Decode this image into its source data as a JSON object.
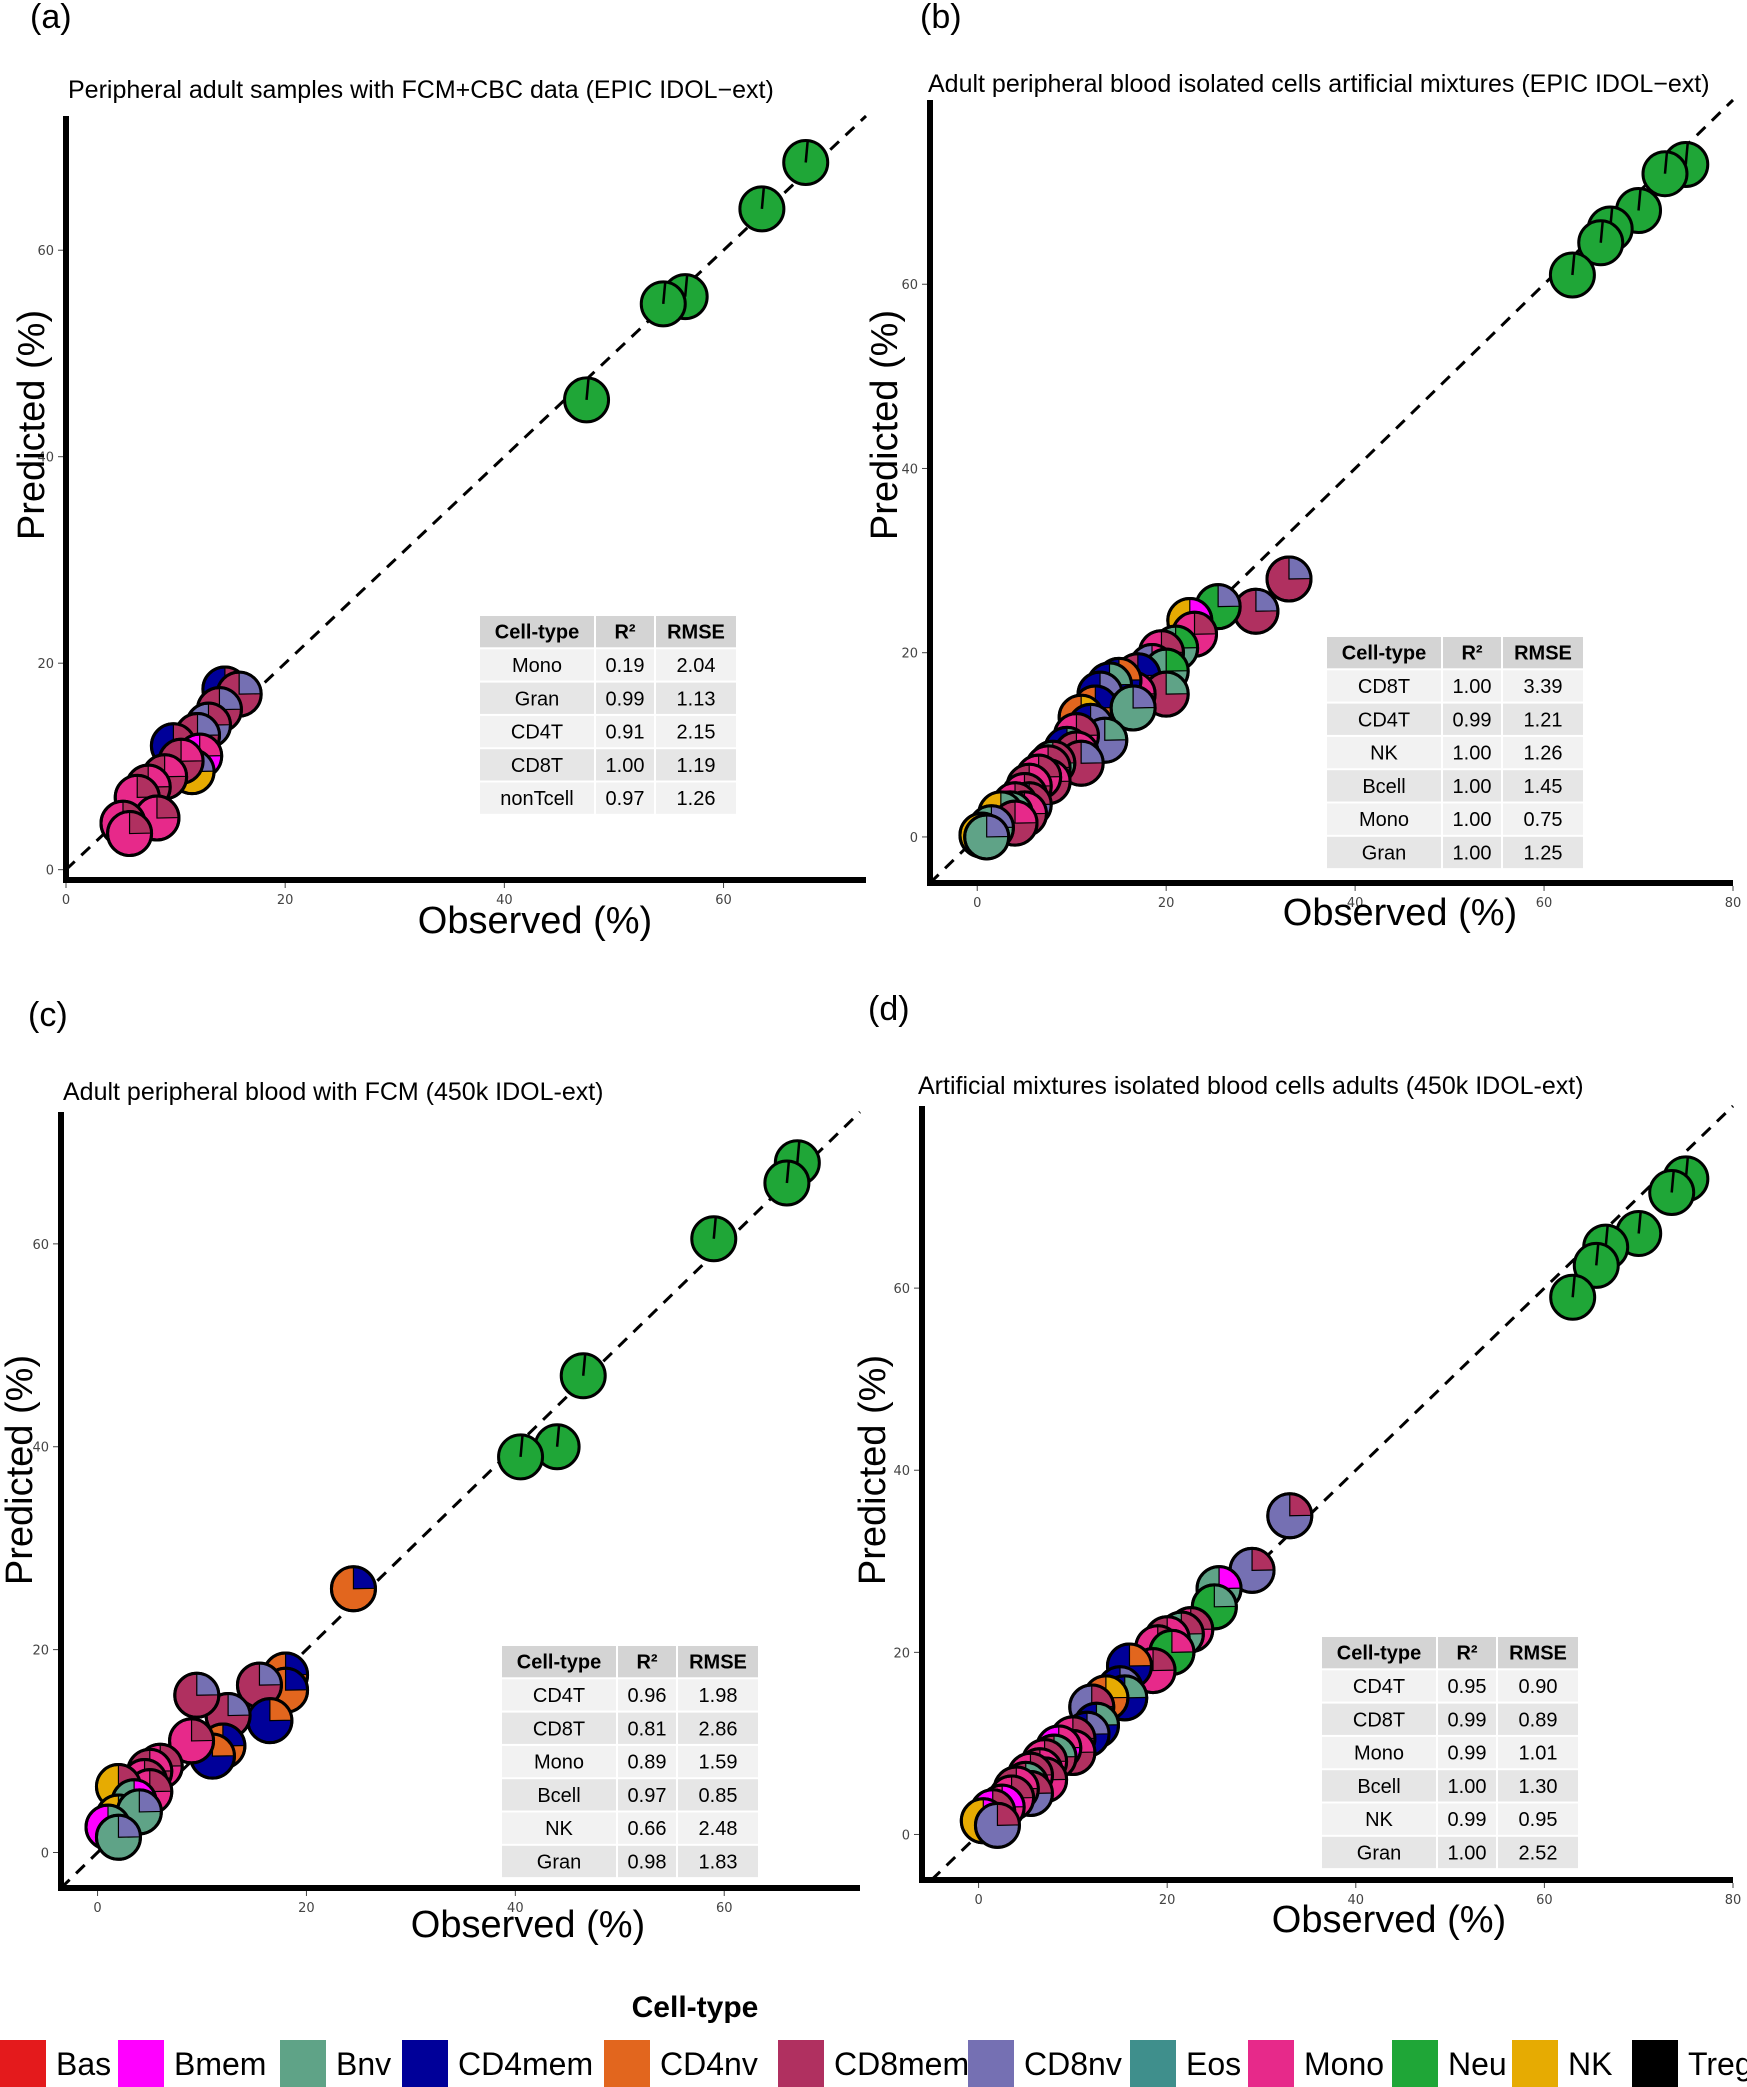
{
  "cell_colors": {
    "Bas": "#e41a1c",
    "Bmem": "#ff00ff",
    "Bnv": "#5fa387",
    "CD4mem": "#000099",
    "CD4nv": "#e2661e",
    "CD8mem": "#b03060",
    "CD8nv": "#7570b3",
    "Eos": "#3f8f8c",
    "Mono": "#e7298a",
    "Neu": "#1fa637",
    "NK": "#e6ab02",
    "Treg": "#000000"
  },
  "legend": {
    "title": "Cell-type",
    "items": [
      "Bas",
      "Bmem",
      "Bnv",
      "CD4mem",
      "CD4nv",
      "CD8mem",
      "CD8nv",
      "Eos",
      "Mono",
      "Neu",
      "NK",
      "Treg"
    ]
  },
  "chart_data": [
    {
      "panel": "(a)",
      "type": "scatter",
      "title": "Peripheral adult samples with FCM+CBC data (EPIC IDOL−ext)",
      "xlabel": "Observed (%)",
      "ylabel": "Predicted (%)",
      "xlim": [
        0,
        73
      ],
      "ylim": [
        -1,
        73
      ],
      "xticks": [
        0,
        20,
        40,
        60
      ],
      "yticks": [
        0,
        20,
        40,
        60
      ],
      "reference_line": "y = x (dashed)",
      "table": {
        "headers": [
          "Cell-type",
          "R²",
          "RMSE"
        ],
        "rows": [
          [
            "Mono",
            "0.19",
            "2.04"
          ],
          [
            "Gran",
            "0.99",
            "1.13"
          ],
          [
            "CD4T",
            "0.91",
            "2.15"
          ],
          [
            "CD8T",
            "1.00",
            "1.19"
          ],
          [
            "nonTcell",
            "0.97",
            "1.26"
          ]
        ]
      },
      "points": [
        {
          "x": 67.5,
          "y": 68.5,
          "c": "Neu",
          "ac": "Neu"
        },
        {
          "x": 63.5,
          "y": 64.0,
          "c": "Neu",
          "ac": "Neu"
        },
        {
          "x": 56.5,
          "y": 55.5,
          "c": "Neu",
          "ac": "Neu"
        },
        {
          "x": 54.5,
          "y": 54.8,
          "c": "Neu",
          "ac": "Neu"
        },
        {
          "x": 47.5,
          "y": 45.5,
          "c": "Neu",
          "ac": "Neu"
        },
        {
          "x": 14.5,
          "y": 17.5,
          "c": "CD4mem",
          "ac": "CD8mem"
        },
        {
          "x": 15.8,
          "y": 17.0,
          "c": "CD8mem",
          "ac": "CD8nv"
        },
        {
          "x": 14.0,
          "y": 15.5,
          "c": "CD8mem",
          "ac": "CD8nv"
        },
        {
          "x": 13.0,
          "y": 14.0,
          "c": "CD8nv",
          "ac": "CD8mem"
        },
        {
          "x": 12.0,
          "y": 13.0,
          "c": "CD8mem",
          "ac": "CD8nv"
        },
        {
          "x": 9.8,
          "y": 12.0,
          "c": "CD4mem",
          "ac": "CD8mem"
        },
        {
          "x": 12.2,
          "y": 11.0,
          "c": "Bmem",
          "ac": "Mono"
        },
        {
          "x": 11.5,
          "y": 9.5,
          "c": "NK",
          "ac": "CD8nv"
        },
        {
          "x": 10.5,
          "y": 10.5,
          "c": "CD8mem",
          "ac": "Mono"
        },
        {
          "x": 9.0,
          "y": 9.0,
          "c": "CD8mem",
          "ac": "Mono"
        },
        {
          "x": 7.5,
          "y": 8.0,
          "c": "CD8mem",
          "ac": "Mono"
        },
        {
          "x": 6.5,
          "y": 7.0,
          "c": "Mono",
          "ac": "CD8mem"
        },
        {
          "x": 8.3,
          "y": 5.0,
          "c": "Mono",
          "ac": "CD8mem"
        },
        {
          "x": 5.2,
          "y": 4.5,
          "c": "Mono",
          "ac": "CD8mem"
        },
        {
          "x": 5.8,
          "y": 3.5,
          "c": "Mono",
          "ac": "CD8mem"
        }
      ]
    },
    {
      "panel": "(b)",
      "type": "scatter",
      "title": "Adult peripheral blood isolated cells artificial mixtures (EPIC IDOL−ext)",
      "xlabel": "Observed (%)",
      "ylabel": "Predicted (%)",
      "xlim": [
        -5,
        80
      ],
      "ylim": [
        -5,
        80
      ],
      "xticks": [
        0,
        20,
        40,
        60,
        80
      ],
      "yticks": [
        0,
        20,
        40,
        60
      ],
      "reference_line": "y = x (dashed)",
      "table": {
        "headers": [
          "Cell-type",
          "R²",
          "RMSE"
        ],
        "rows": [
          [
            "CD8T",
            "1.00",
            "3.39"
          ],
          [
            "CD4T",
            "0.99",
            "1.21"
          ],
          [
            "NK",
            "1.00",
            "1.26"
          ],
          [
            "Bcell",
            "1.00",
            "1.45"
          ],
          [
            "Mono",
            "1.00",
            "0.75"
          ],
          [
            "Gran",
            "1.00",
            "1.25"
          ]
        ]
      },
      "points": [
        {
          "x": 75.0,
          "y": 73.0,
          "c": "Neu",
          "ac": "Neu"
        },
        {
          "x": 72.8,
          "y": 72.0,
          "c": "Neu",
          "ac": "Neu"
        },
        {
          "x": 70.0,
          "y": 68.0,
          "c": "Neu",
          "ac": "Neu"
        },
        {
          "x": 67.0,
          "y": 66.0,
          "c": "Neu",
          "ac": "Neu"
        },
        {
          "x": 66.0,
          "y": 64.5,
          "c": "Neu",
          "ac": "Neu"
        },
        {
          "x": 63.0,
          "y": 61.0,
          "c": "Neu",
          "ac": "Neu"
        },
        {
          "x": 33.0,
          "y": 28.0,
          "c": "CD8mem",
          "ac": "CD8nv"
        },
        {
          "x": 29.5,
          "y": 24.5,
          "c": "CD8mem",
          "ac": "CD8nv"
        },
        {
          "x": 25.5,
          "y": 25.0,
          "c": "Neu",
          "ac": "CD8nv"
        },
        {
          "x": 22.5,
          "y": 23.5,
          "c": "NK",
          "ac": "Bmem"
        },
        {
          "x": 23.0,
          "y": 22.0,
          "c": "Mono",
          "ac": "CD8mem"
        },
        {
          "x": 21.0,
          "y": 20.5,
          "c": "Bnv",
          "ac": "Neu"
        },
        {
          "x": 19.5,
          "y": 20.0,
          "c": "Mono",
          "ac": "CD8mem"
        },
        {
          "x": 18.5,
          "y": 18.5,
          "c": "CD8nv",
          "ac": "Mono"
        },
        {
          "x": 20.0,
          "y": 18.0,
          "c": "Bnv",
          "ac": "Neu"
        },
        {
          "x": 17.0,
          "y": 17.5,
          "c": "CD8mem",
          "ac": "CD4mem"
        },
        {
          "x": 20.0,
          "y": 15.5,
          "c": "CD8mem",
          "ac": "Bnv"
        },
        {
          "x": 16.5,
          "y": 15.5,
          "c": "CD8mem",
          "ac": "Mono"
        },
        {
          "x": 15.0,
          "y": 17.0,
          "c": "CD4mem",
          "ac": "CD4nv"
        },
        {
          "x": 14.0,
          "y": 16.5,
          "c": "CD4mem",
          "ac": "Bnv"
        },
        {
          "x": 13.0,
          "y": 15.5,
          "c": "CD4mem",
          "ac": "CD8nv"
        },
        {
          "x": 12.5,
          "y": 14.0,
          "c": "CD4nv",
          "ac": "CD4mem"
        },
        {
          "x": 16.5,
          "y": 14.0,
          "c": "Bnv",
          "ac": "CD8nv"
        },
        {
          "x": 11.0,
          "y": 13.0,
          "c": "CD4nv",
          "ac": "NK"
        },
        {
          "x": 12.0,
          "y": 12.0,
          "c": "CD4mem",
          "ac": "CD8nv"
        },
        {
          "x": 13.5,
          "y": 10.5,
          "c": "CD8nv",
          "ac": "Bnv"
        },
        {
          "x": 10.5,
          "y": 11.0,
          "c": "Mono",
          "ac": "CD8mem"
        },
        {
          "x": 9.5,
          "y": 9.5,
          "c": "CD4mem",
          "ac": "Bnv"
        },
        {
          "x": 10.5,
          "y": 9.0,
          "c": "CD8mem",
          "ac": "Mono"
        },
        {
          "x": 11.0,
          "y": 8.0,
          "c": "CD8mem",
          "ac": "CD8nv"
        },
        {
          "x": 8.0,
          "y": 8.0,
          "c": "Bnv",
          "ac": "CD8mem"
        },
        {
          "x": 7.5,
          "y": 7.5,
          "c": "Mono",
          "ac": "CD8mem"
        },
        {
          "x": 7.5,
          "y": 6.0,
          "c": "CD8mem",
          "ac": "Mono"
        },
        {
          "x": 6.5,
          "y": 6.5,
          "c": "Mono",
          "ac": "CD8mem"
        },
        {
          "x": 5.5,
          "y": 5.5,
          "c": "CD8mem",
          "ac": "Mono"
        },
        {
          "x": 5.0,
          "y": 4.5,
          "c": "Mono",
          "ac": "CD8mem"
        },
        {
          "x": 5.5,
          "y": 3.5,
          "c": "CD8nv",
          "ac": "CD8mem"
        },
        {
          "x": 4.0,
          "y": 3.5,
          "c": "Mono",
          "ac": "CD8mem"
        },
        {
          "x": 5.0,
          "y": 2.5,
          "c": "CD8mem",
          "ac": "Mono"
        },
        {
          "x": 3.5,
          "y": 2.5,
          "c": "CD8mem",
          "ac": "Bnv"
        },
        {
          "x": 2.5,
          "y": 2.5,
          "c": "NK",
          "ac": "Bnv"
        },
        {
          "x": 4.0,
          "y": 1.5,
          "c": "CD8mem",
          "ac": "Mono"
        },
        {
          "x": 1.5,
          "y": 1.0,
          "c": "Bnv",
          "ac": "CD8nv"
        },
        {
          "x": 0.5,
          "y": 0.2,
          "c": "NK",
          "ac": "Bnv"
        },
        {
          "x": 1.0,
          "y": 0.0,
          "c": "Bnv",
          "ac": "CD8nv"
        }
      ]
    },
    {
      "panel": "(c)",
      "type": "scatter",
      "title": "Adult peripheral blood with FCM (450k IDOL-ext)",
      "xlabel": "Observed (%)",
      "ylabel": "Predicted (%)",
      "xlim": [
        -3.5,
        73
      ],
      "ylim": [
        -3.5,
        73
      ],
      "xticks": [
        0,
        20,
        40,
        60
      ],
      "yticks": [
        0,
        20,
        40,
        60
      ],
      "reference_line": "y = x (dashed)",
      "table": {
        "headers": [
          "Cell-type",
          "R²",
          "RMSE"
        ],
        "rows": [
          [
            "CD4T",
            "0.96",
            "1.98"
          ],
          [
            "CD8T",
            "0.81",
            "2.86"
          ],
          [
            "Mono",
            "0.89",
            "1.59"
          ],
          [
            "Bcell",
            "0.97",
            "0.85"
          ],
          [
            "NK",
            "0.66",
            "2.48"
          ],
          [
            "Gran",
            "0.98",
            "1.83"
          ]
        ]
      },
      "points": [
        {
          "x": 67.0,
          "y": 68.0,
          "c": "Neu",
          "ac": "Neu"
        },
        {
          "x": 66.0,
          "y": 66.0,
          "c": "Neu",
          "ac": "Neu"
        },
        {
          "x": 59.0,
          "y": 60.5,
          "c": "Neu",
          "ac": "Neu"
        },
        {
          "x": 46.5,
          "y": 47.0,
          "c": "Neu",
          "ac": "Neu"
        },
        {
          "x": 44.0,
          "y": 40.0,
          "c": "Neu",
          "ac": "Neu"
        },
        {
          "x": 40.5,
          "y": 39.0,
          "c": "Neu",
          "ac": "Neu"
        },
        {
          "x": 24.5,
          "y": 26.0,
          "c": "CD4nv",
          "ac": "CD4mem"
        },
        {
          "x": 18.0,
          "y": 17.5,
          "c": "CD4nv",
          "ac": "CD4mem"
        },
        {
          "x": 18.0,
          "y": 16.0,
          "c": "CD4nv",
          "ac": "CD4mem"
        },
        {
          "x": 15.5,
          "y": 16.5,
          "c": "CD8mem",
          "ac": "CD8nv"
        },
        {
          "x": 16.5,
          "y": 13.0,
          "c": "CD4mem",
          "ac": "CD4nv"
        },
        {
          "x": 12.5,
          "y": 13.5,
          "c": "CD8mem",
          "ac": "CD8nv"
        },
        {
          "x": 9.5,
          "y": 15.5,
          "c": "CD8mem",
          "ac": "CD8nv"
        },
        {
          "x": 12.0,
          "y": 10.5,
          "c": "CD4nv",
          "ac": "CD4mem"
        },
        {
          "x": 11.0,
          "y": 9.5,
          "c": "CD4mem",
          "ac": "CD4nv"
        },
        {
          "x": 9.0,
          "y": 11.0,
          "c": "Mono",
          "ac": "CD8mem"
        },
        {
          "x": 6.0,
          "y": 8.5,
          "c": "Mono",
          "ac": "CD8mem"
        },
        {
          "x": 5.0,
          "y": 8.0,
          "c": "CD8mem",
          "ac": "Mono"
        },
        {
          "x": 4.5,
          "y": 7.0,
          "c": "Mono",
          "ac": "CD8mem"
        },
        {
          "x": 5.0,
          "y": 6.0,
          "c": "Mono",
          "ac": "CD8mem"
        },
        {
          "x": 2.0,
          "y": 6.5,
          "c": "NK",
          "ac": "CD8mem"
        },
        {
          "x": 3.5,
          "y": 5.0,
          "c": "Bnv",
          "ac": "Bmem"
        },
        {
          "x": 2.0,
          "y": 3.5,
          "c": "NK",
          "ac": "Bnv"
        },
        {
          "x": 4.0,
          "y": 4.0,
          "c": "Bnv",
          "ac": "CD8nv"
        },
        {
          "x": 1.0,
          "y": 2.5,
          "c": "Bmem",
          "ac": "Bnv"
        },
        {
          "x": 2.0,
          "y": 1.5,
          "c": "Bnv",
          "ac": "CD8nv"
        }
      ]
    },
    {
      "panel": "(d)",
      "type": "scatter",
      "title": "Artificial mixtures isolated blood cells adults (450k IDOL-ext)",
      "xlabel": "Observed (%)",
      "ylabel": "Predicted (%)",
      "xlim": [
        -6,
        80
      ],
      "ylim": [
        -5,
        80
      ],
      "xticks": [
        0,
        20,
        40,
        60,
        80
      ],
      "yticks": [
        0,
        20,
        40,
        60
      ],
      "reference_line": "y = x (dashed)",
      "table": {
        "headers": [
          "Cell-type",
          "R²",
          "RMSE"
        ],
        "rows": [
          [
            "CD4T",
            "0.95",
            "0.90"
          ],
          [
            "CD8T",
            "0.99",
            "0.89"
          ],
          [
            "Mono",
            "0.99",
            "1.01"
          ],
          [
            "Bcell",
            "1.00",
            "1.30"
          ],
          [
            "NK",
            "0.99",
            "0.95"
          ],
          [
            "Gran",
            "1.00",
            "2.52"
          ]
        ]
      },
      "points": [
        {
          "x": 75.0,
          "y": 72.0,
          "c": "Neu",
          "ac": "Neu"
        },
        {
          "x": 73.5,
          "y": 70.5,
          "c": "Neu",
          "ac": "Neu"
        },
        {
          "x": 70.0,
          "y": 66.0,
          "c": "Neu",
          "ac": "Neu"
        },
        {
          "x": 66.5,
          "y": 64.5,
          "c": "Neu",
          "ac": "Neu"
        },
        {
          "x": 65.5,
          "y": 62.5,
          "c": "Neu",
          "ac": "Neu"
        },
        {
          "x": 63.0,
          "y": 59.0,
          "c": "Neu",
          "ac": "Neu"
        },
        {
          "x": 33.0,
          "y": 35.0,
          "c": "CD8nv",
          "ac": "CD8mem"
        },
        {
          "x": 29.0,
          "y": 29.0,
          "c": "CD8nv",
          "ac": "CD8mem"
        },
        {
          "x": 25.5,
          "y": 27.0,
          "c": "Bnv",
          "ac": "Bmem"
        },
        {
          "x": 25.0,
          "y": 25.0,
          "c": "Neu",
          "ac": "Bnv"
        },
        {
          "x": 22.5,
          "y": 22.5,
          "c": "Mono",
          "ac": "CD8mem"
        },
        {
          "x": 21.5,
          "y": 22.0,
          "c": "Bnv",
          "ac": "CD8mem"
        },
        {
          "x": 20.0,
          "y": 21.5,
          "c": "CD8mem",
          "ac": "Mono"
        },
        {
          "x": 19.0,
          "y": 20.5,
          "c": "Mono",
          "ac": "CD8mem"
        },
        {
          "x": 20.5,
          "y": 20.0,
          "c": "Neu",
          "ac": "Mono"
        },
        {
          "x": 18.5,
          "y": 18.0,
          "c": "Mono",
          "ac": "CD8mem"
        },
        {
          "x": 16.0,
          "y": 18.5,
          "c": "CD4mem",
          "ac": "CD4nv"
        },
        {
          "x": 15.0,
          "y": 16.0,
          "c": "CD4mem",
          "ac": "CD8nv"
        },
        {
          "x": 15.5,
          "y": 15.0,
          "c": "CD4mem",
          "ac": "Bnv"
        },
        {
          "x": 13.5,
          "y": 15.0,
          "c": "CD4nv",
          "ac": "NK"
        },
        {
          "x": 12.0,
          "y": 14.0,
          "c": "CD8nv",
          "ac": "CD8mem"
        },
        {
          "x": 12.5,
          "y": 12.0,
          "c": "CD4mem",
          "ac": "Bnv"
        },
        {
          "x": 11.5,
          "y": 11.0,
          "c": "CD4mem",
          "ac": "CD8nv"
        },
        {
          "x": 10.0,
          "y": 10.5,
          "c": "Mono",
          "ac": "CD8mem"
        },
        {
          "x": 10.0,
          "y": 9.0,
          "c": "CD8mem",
          "ac": "Mono"
        },
        {
          "x": 8.5,
          "y": 9.5,
          "c": "Bmem",
          "ac": "Mono"
        },
        {
          "x": 8.0,
          "y": 8.5,
          "c": "CD8mem",
          "ac": "Bnv"
        },
        {
          "x": 7.0,
          "y": 8.0,
          "c": "Mono",
          "ac": "CD8mem"
        },
        {
          "x": 6.5,
          "y": 7.0,
          "c": "CD8mem",
          "ac": "Mono"
        },
        {
          "x": 7.0,
          "y": 6.0,
          "c": "Mono",
          "ac": "CD8mem"
        },
        {
          "x": 5.5,
          "y": 6.5,
          "c": "Mono",
          "ac": "CD8mem"
        },
        {
          "x": 5.0,
          "y": 5.5,
          "c": "CD8mem",
          "ac": "Bnv"
        },
        {
          "x": 5.5,
          "y": 4.5,
          "c": "CD8nv",
          "ac": "CD8mem"
        },
        {
          "x": 4.0,
          "y": 5.0,
          "c": "CD8mem",
          "ac": "Mono"
        },
        {
          "x": 3.5,
          "y": 4.0,
          "c": "Mono",
          "ac": "CD8mem"
        },
        {
          "x": 2.5,
          "y": 3.0,
          "c": "Mono",
          "ac": "Bmem"
        },
        {
          "x": 1.5,
          "y": 2.5,
          "c": "Bmem",
          "ac": "CD8mem"
        },
        {
          "x": 0.5,
          "y": 1.5,
          "c": "NK",
          "ac": "Bmem"
        },
        {
          "x": 2.0,
          "y": 1.0,
          "c": "CD8nv",
          "ac": "CD8mem"
        }
      ]
    }
  ]
}
